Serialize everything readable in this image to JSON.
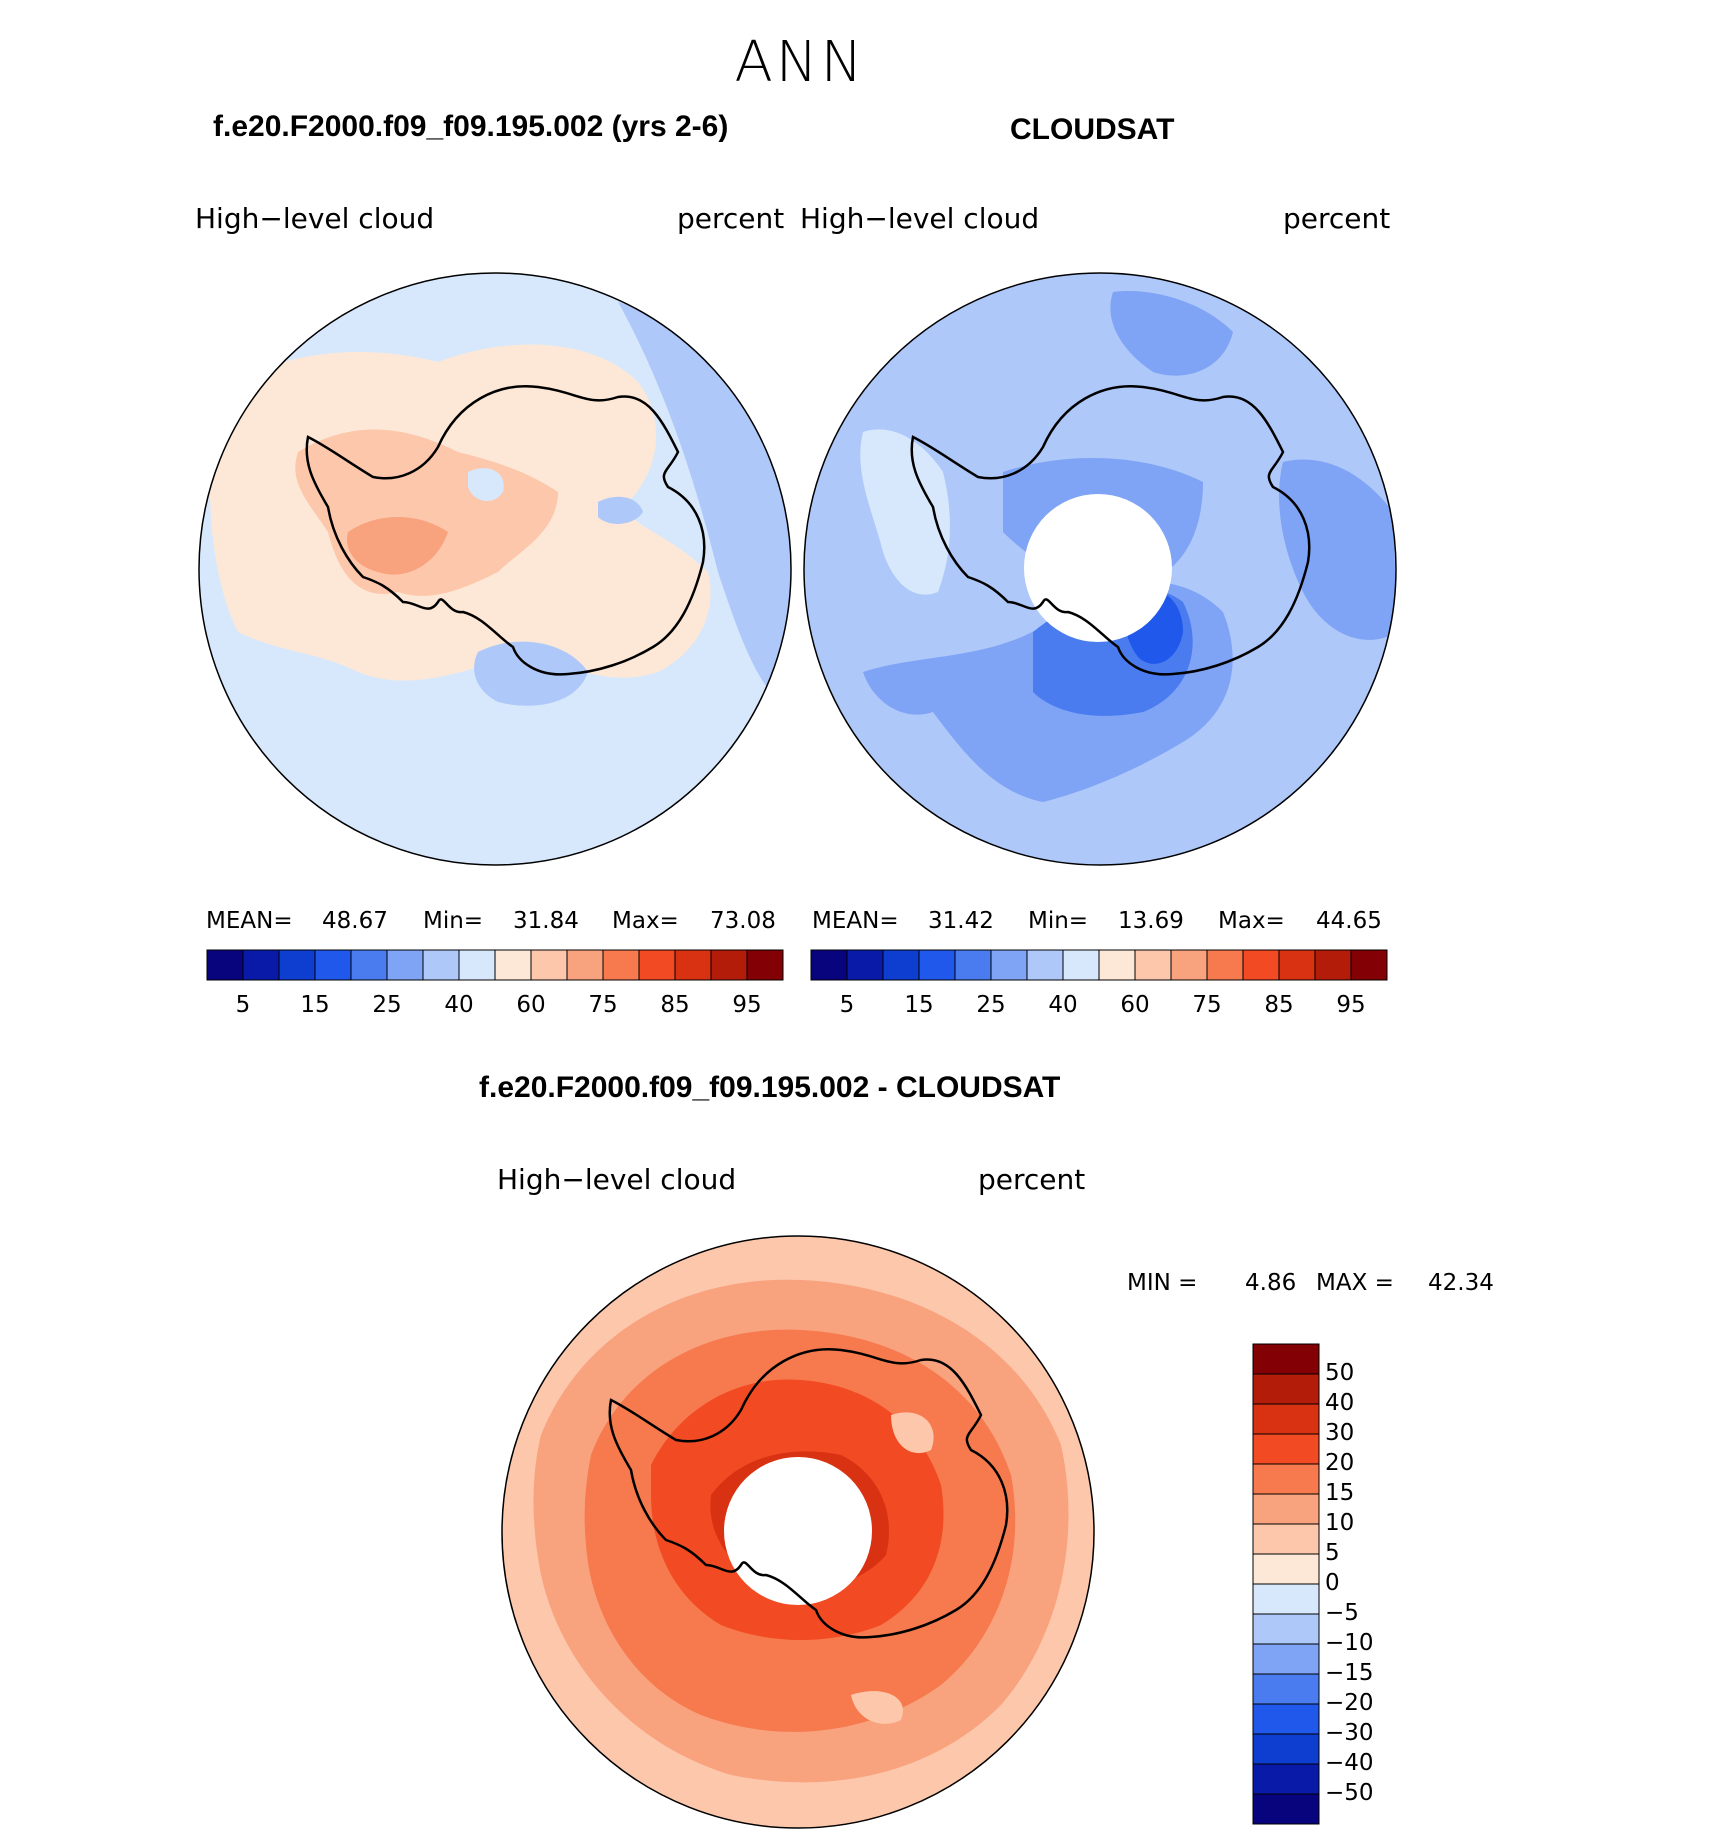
{
  "page_title": "ANN",
  "panels": [
    {
      "title": "f.e20.F2000.f09_f09.195.002 (yrs 2-6)",
      "variable_label": "High−level  cloud",
      "units_label": "percent",
      "stats": {
        "mean_label": "MEAN=",
        "mean": "48.67",
        "min_label": "Min=",
        "min": "31.84",
        "max_label": "Max=",
        "max": "73.08"
      }
    },
    {
      "title": "CLOUDSAT",
      "variable_label": "High−level  cloud",
      "units_label": "percent",
      "stats": {
        "mean_label": "MEAN=",
        "mean": "31.42",
        "min_label": "Min=",
        "min": "13.69",
        "max_label": "Max=",
        "max": "44.65"
      }
    },
    {
      "title": "f.e20.F2000.f09_f09.195.002 - CLOUDSAT",
      "variable_label": "High−level  cloud",
      "units_label": "percent",
      "stats": {
        "min_label": "MIN =",
        "min": "4.86",
        "max_label": "MAX =",
        "max": "42.34"
      }
    }
  ],
  "colorbar_top": {
    "colors": [
      "#08047e",
      "#0a1aa8",
      "#0d3ed0",
      "#1f58ea",
      "#4a7cf0",
      "#7fa3f5",
      "#aec8fa",
      "#d7e8fc",
      "#fde8d7",
      "#fcc7ab",
      "#f9a27e",
      "#f67a4e",
      "#f24a22",
      "#d93212",
      "#b41c0a",
      "#830004"
    ],
    "tick_labels": [
      "5",
      "15",
      "25",
      "40",
      "60",
      "75",
      "85",
      "95"
    ]
  },
  "colorbar_diff": {
    "colors": [
      "#830004",
      "#b41c0a",
      "#d93212",
      "#f24a22",
      "#f67a4e",
      "#f9a27e",
      "#fcc7ab",
      "#fde8d7",
      "#d7e8fc",
      "#aec8fa",
      "#7fa3f5",
      "#4a7cf0",
      "#1f58ea",
      "#0d3ed0",
      "#0a1aa8",
      "#08047e"
    ],
    "tick_labels": [
      "50",
      "40",
      "30",
      "20",
      "15",
      "10",
      "5",
      "0",
      "−5",
      "−10",
      "−15",
      "−20",
      "−30",
      "−40",
      "−50"
    ]
  }
}
